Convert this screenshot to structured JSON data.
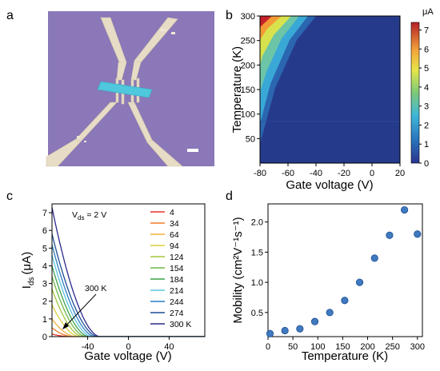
{
  "panel_labels": {
    "a": "a",
    "b": "b",
    "c": "c",
    "d": "d"
  },
  "colors": {
    "micrograph_background": "#8a78b8",
    "electrode": "#e7dcc6",
    "flake": "#4fc7dc",
    "scatter_marker": "#3f79c0"
  },
  "chart_data": [
    {
      "panel": "b",
      "type": "heatmap",
      "title": "",
      "xlabel": "Gate voltage (V)",
      "ylabel": "Temperature (K)",
      "xlim": [
        -80,
        20
      ],
      "ylim": [
        0,
        300
      ],
      "xticks": [
        -80,
        -60,
        -40,
        -20,
        0,
        20
      ],
      "yticks": [
        50,
        100,
        150,
        200,
        250,
        300
      ],
      "colorbar": {
        "unit": "μA",
        "range": [
          0,
          7.4
        ],
        "ticks": [
          0,
          1,
          2,
          3,
          4,
          5,
          6,
          7
        ]
      },
      "field": "Current is highest (~7.4 μA) at strongly negative gate voltage and high temperature; the onset contour moves from about -70 V at 4 K to about -30 V at 300 K.",
      "onset_contour": {
        "x": [
          -80,
          -70,
          -60,
          -52,
          -45,
          -38,
          -32
        ],
        "y": [
          40,
          100,
          140,
          180,
          220,
          260,
          300
        ]
      }
    },
    {
      "panel": "c",
      "type": "line",
      "title": "",
      "annotation": "V_ds = 2 V",
      "xlabel": "Gate voltage (V)",
      "ylabel": "I_ds (μA)",
      "ylabel_unit": "(μA)",
      "xlim": [
        -75,
        75
      ],
      "ylim": [
        0,
        7.5
      ],
      "xticks": [
        -40,
        0,
        40
      ],
      "yticks": [
        0,
        1,
        2,
        3,
        4,
        5,
        6,
        7
      ],
      "arrow_label": "300 K",
      "series": [
        {
          "name": "4",
          "color": "#e8332a",
          "i_at_min": 0.15,
          "threshold": -58
        },
        {
          "name": "34",
          "color": "#f07b27",
          "i_at_min": 0.5,
          "threshold": -55
        },
        {
          "name": "64",
          "color": "#f3b03a",
          "i_at_min": 1.0,
          "threshold": -52
        },
        {
          "name": "94",
          "color": "#d8d13c",
          "i_at_min": 1.8,
          "threshold": -48
        },
        {
          "name": "124",
          "color": "#a3c53c",
          "i_at_min": 2.7,
          "threshold": -45
        },
        {
          "name": "154",
          "color": "#6fb844",
          "i_at_min": 3.4,
          "threshold": -42
        },
        {
          "name": "184",
          "color": "#3e9e4d",
          "i_at_min": 4.0,
          "threshold": -39
        },
        {
          "name": "214",
          "color": "#5bc3de",
          "i_at_min": 4.6,
          "threshold": -36
        },
        {
          "name": "244",
          "color": "#2c7fc0",
          "i_at_min": 5.2,
          "threshold": -33
        },
        {
          "name": "274",
          "color": "#1d4d93",
          "i_at_min": 5.8,
          "threshold": -30
        },
        {
          "name": "300 K",
          "color": "#2a2a8c",
          "i_at_min": 7.3,
          "threshold": -28
        }
      ]
    },
    {
      "panel": "d",
      "type": "scatter",
      "title": "",
      "xlabel": "Temperature (K)",
      "ylabel": "Mobility (cm²V⁻¹s⁻¹)",
      "xlim": [
        0,
        310
      ],
      "ylim": [
        0.1,
        2.3
      ],
      "xticks": [
        0,
        50,
        100,
        150,
        200,
        250,
        300
      ],
      "yticks": [
        0.5,
        1.0,
        1.5,
        2.0
      ],
      "x": [
        4,
        34,
        64,
        94,
        124,
        154,
        184,
        214,
        244,
        274,
        300
      ],
      "y": [
        0.15,
        0.2,
        0.23,
        0.35,
        0.5,
        0.7,
        1.0,
        1.4,
        1.78,
        2.2,
        1.8
      ]
    }
  ]
}
